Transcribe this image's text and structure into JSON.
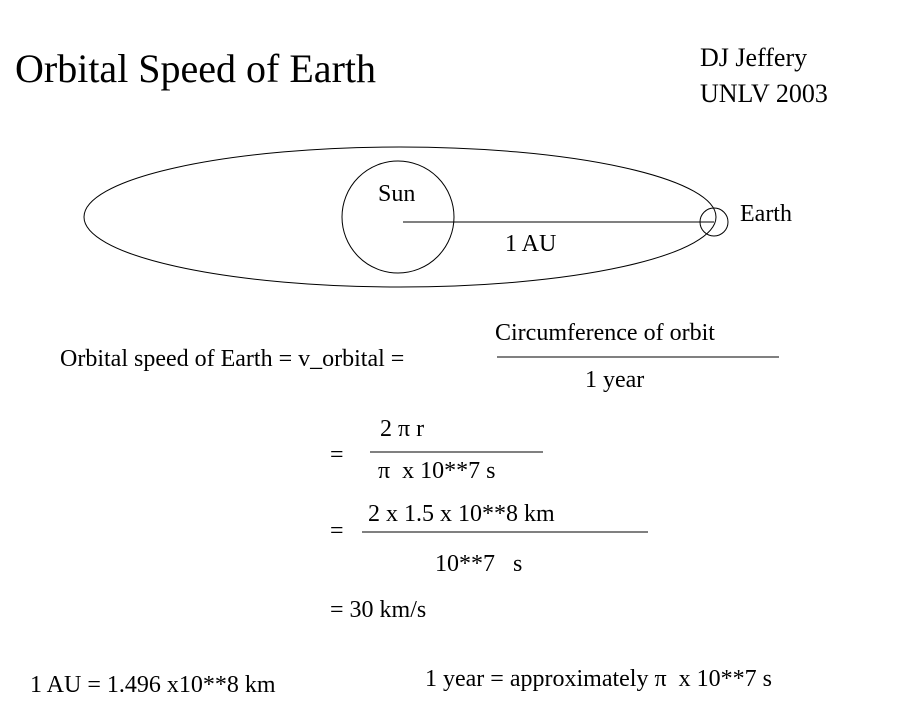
{
  "title": "Orbital Speed of Earth",
  "author": {
    "name": "DJ Jeffery",
    "affiliation": "UNLV 2003"
  },
  "diagram": {
    "sun": "Sun",
    "earth": "Earth",
    "distance": "1 AU"
  },
  "equations": [
    {
      "left": "Orbital speed of Earth = v_orbital =",
      "numerator": "Circumference of orbit",
      "denominator": "1 year"
    },
    {
      "left": "=",
      "numerator": "2 π r",
      "denominator": "π  x 10**7 s"
    },
    {
      "left": "=",
      "numerator": "2 x 1.5 x 10**8 km",
      "denominator": "10**7   s"
    },
    {
      "left": "= 30 km/s"
    }
  ],
  "notes": [
    "1 AU = 1.496 x10**8 km",
    "1 year = approximately π  x 10**7 s"
  ]
}
